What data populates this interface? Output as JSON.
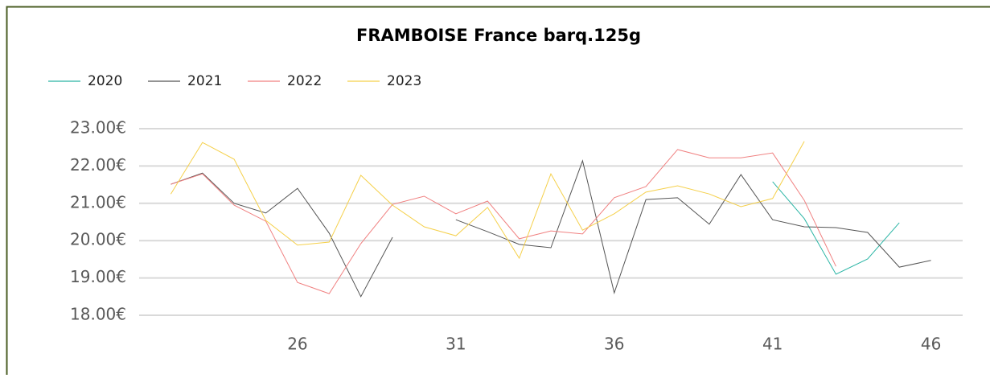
{
  "chart_data": {
    "type": "line",
    "title": "FRAMBOISE France barq.125g",
    "x": [
      21,
      22,
      23,
      24,
      25,
      26,
      27,
      28,
      29,
      30,
      31,
      32,
      33,
      34,
      35,
      36,
      37,
      38,
      39,
      40,
      41,
      42,
      43,
      44,
      45,
      46
    ],
    "xlim": [
      21,
      47
    ],
    "xticks": [
      26,
      31,
      36,
      41,
      46
    ],
    "ylim": [
      18,
      23
    ],
    "yticks": [
      {
        "value": 18,
        "label": "18.00€"
      },
      {
        "value": 19,
        "label": "19.00€"
      },
      {
        "value": 20,
        "label": "20.00€"
      },
      {
        "value": 21,
        "label": "21.00€"
      },
      {
        "value": 22,
        "label": "22.00€"
      },
      {
        "value": 23,
        "label": "23.00€"
      }
    ],
    "grid": true,
    "legend": "top-left",
    "series": [
      {
        "name": "2020",
        "color": "#2bb5a5",
        "values": [
          null,
          null,
          null,
          null,
          null,
          null,
          null,
          null,
          null,
          null,
          null,
          null,
          null,
          null,
          null,
          null,
          null,
          null,
          null,
          null,
          21.58,
          20.59,
          19.1,
          19.51,
          20.48,
          null
        ]
      },
      {
        "name": "2021",
        "color": "#555555",
        "values": [
          null,
          21.51,
          21.81,
          21.0,
          20.74,
          21.4,
          20.2,
          18.5,
          20.09,
          null,
          20.56,
          20.24,
          19.9,
          19.81,
          22.14,
          18.6,
          21.1,
          21.15,
          20.44,
          21.77,
          20.56,
          20.37,
          20.35,
          20.22,
          19.29,
          19.47
        ]
      },
      {
        "name": "2022",
        "color": "#f08080",
        "values": [
          null,
          21.51,
          21.79,
          20.95,
          20.52,
          18.88,
          18.58,
          19.92,
          20.97,
          21.19,
          20.72,
          21.06,
          20.05,
          20.26,
          20.18,
          21.15,
          21.45,
          22.44,
          22.22,
          22.22,
          22.35,
          21.08,
          19.31,
          null,
          null,
          null
        ]
      },
      {
        "name": "2023",
        "color": "#f5d04a",
        "values": [
          null,
          21.25,
          22.63,
          22.18,
          20.54,
          19.88,
          19.96,
          21.75,
          20.95,
          20.37,
          20.13,
          20.89,
          19.53,
          21.79,
          20.28,
          20.72,
          21.3,
          21.47,
          21.25,
          20.91,
          21.13,
          22.66,
          null,
          null,
          null,
          null
        ]
      }
    ]
  }
}
